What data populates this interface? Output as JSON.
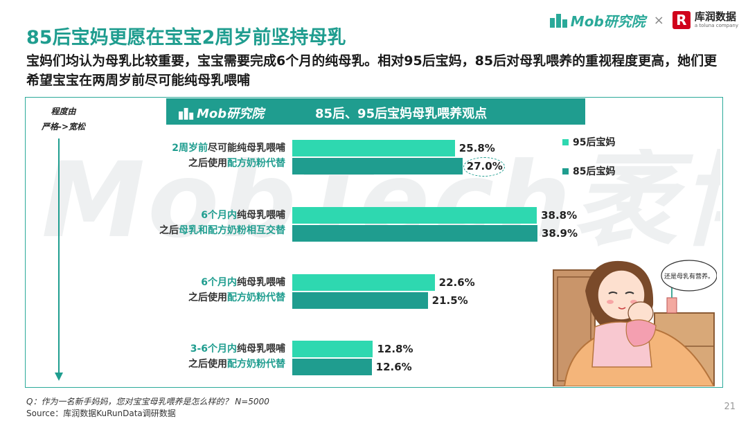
{
  "header": {
    "mob_brand": "Mob研究院",
    "separator": "×",
    "partner_mark": "R",
    "partner_name": "库润数据",
    "partner_sub": "a toluna company"
  },
  "watermark": "MobTech袤博",
  "title": "85后宝妈更愿在宝宝2周岁前坚持母乳",
  "subtitle": "宝妈们均认为母乳比较重要，宝宝需要完成6个月的纯母乳。相对95后宝妈，85后对母乳喂养的重视程度更高，她们更希望宝宝在两周岁前尽可能纯母乳喂哺",
  "panel": {
    "brand": "Mob研究院",
    "title": "85后、95后宝妈母乳喂养观点"
  },
  "axis": {
    "line1": "程度由",
    "line2": "严格->宽松"
  },
  "colors": {
    "series_95": "#2ed8b0",
    "series_85": "#1f9d8f",
    "accent": "#1f9d8f"
  },
  "chart_data": {
    "type": "bar",
    "orientation": "horizontal",
    "title": "85后、95后宝妈母乳喂养观点",
    "categories": [
      {
        "line1": [
          {
            "text": "2周岁前",
            "hl": true
          },
          {
            "text": "尽可能纯母乳喂哺",
            "hl": false
          }
        ],
        "line2": [
          {
            "text": "之后使用",
            "hl": false
          },
          {
            "text": "配方奶粉代替",
            "hl": true
          }
        ]
      },
      {
        "line1": [
          {
            "text": "6个月内",
            "hl": true
          },
          {
            "text": "纯母乳喂哺",
            "hl": false
          }
        ],
        "line2": [
          {
            "text": "之后",
            "hl": false
          },
          {
            "text": "母乳和配方奶粉相互交替",
            "hl": true
          }
        ]
      },
      {
        "line1": [
          {
            "text": "6个月内",
            "hl": true
          },
          {
            "text": "纯母乳喂哺",
            "hl": false
          }
        ],
        "line2": [
          {
            "text": "之后使用",
            "hl": false
          },
          {
            "text": "配方奶粉代替",
            "hl": true
          }
        ]
      },
      {
        "line1": [
          {
            "text": "3-6个月内",
            "hl": true
          },
          {
            "text": "纯母乳喂哺",
            "hl": false
          }
        ],
        "line2": [
          {
            "text": "之后使用",
            "hl": false
          },
          {
            "text": "配方奶粉代替",
            "hl": true
          }
        ]
      }
    ],
    "series": [
      {
        "name": "95后宝妈",
        "values": [
          25.8,
          38.8,
          22.6,
          12.8
        ],
        "labels": [
          "25.8%",
          "38.8%",
          "22.6%",
          "12.8%"
        ]
      },
      {
        "name": "85后宝妈",
        "values": [
          27.0,
          38.9,
          21.5,
          12.6
        ],
        "labels": [
          "27.0%",
          "38.9%",
          "21.5%",
          "12.6%"
        ]
      }
    ],
    "xlim": [
      0,
      40
    ],
    "grid": false,
    "legend_position": "right"
  },
  "illustration": {
    "speech": "还是母乳有营养。"
  },
  "footer": {
    "question": "Q：作为一名新手妈妈，您对宝宝母乳喂养是怎么样的？  N=5000",
    "source": "Source：库润数据KuRunData调研数据"
  },
  "page_number": "21"
}
